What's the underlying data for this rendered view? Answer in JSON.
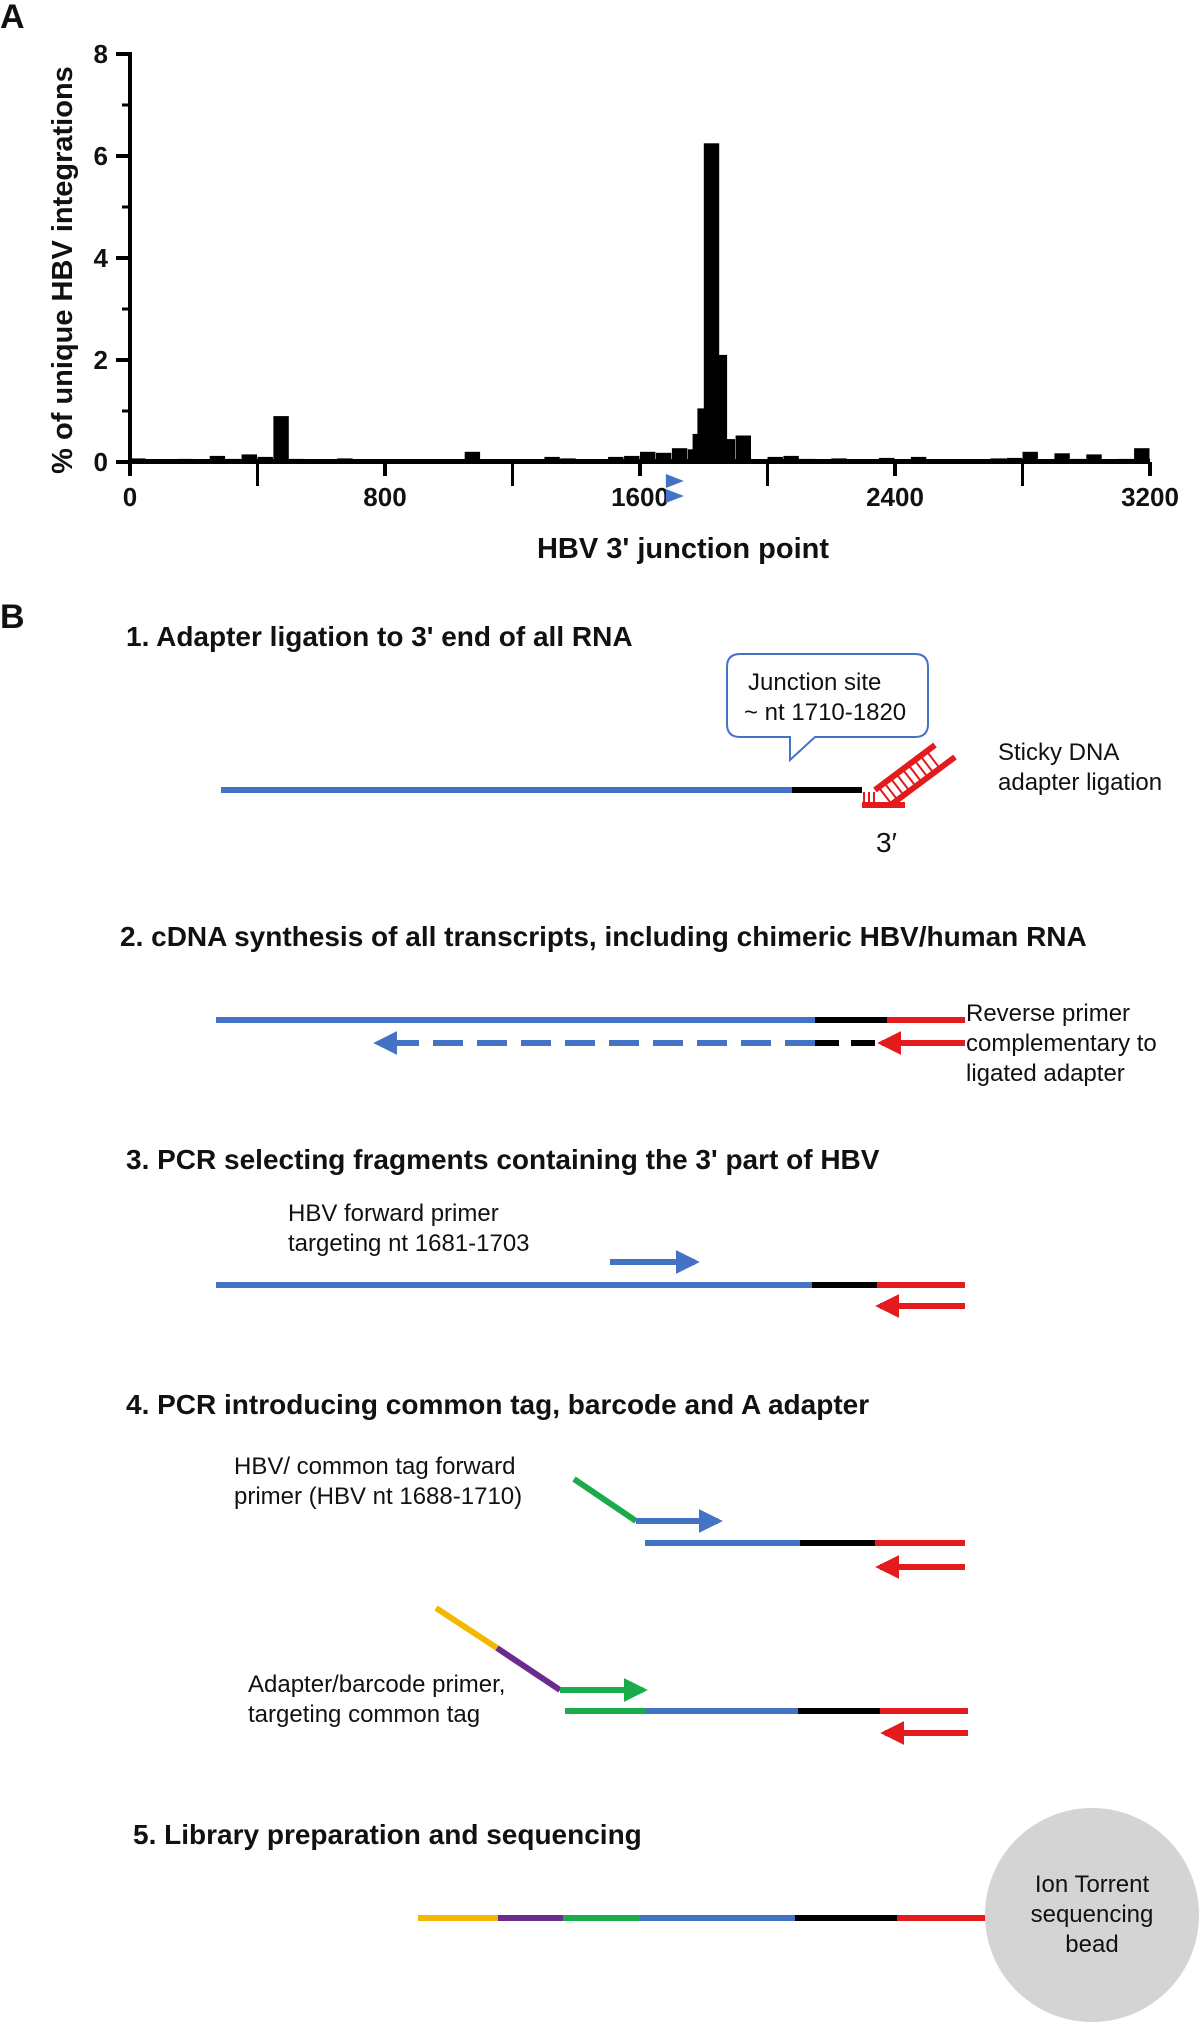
{
  "panel_a": {
    "label": "A",
    "chart_data": {
      "type": "bar",
      "title": "",
      "xlabel": "HBV 3' junction point",
      "ylabel": "% of unique HBV integrations",
      "xlim": [
        0,
        3200
      ],
      "ylim": [
        0,
        8
      ],
      "xticks": [
        0,
        800,
        1600,
        2400,
        3200
      ],
      "yticks": [
        0,
        2,
        4,
        6,
        8
      ],
      "grid": false,
      "bin_width": 50,
      "bins": [
        {
          "x": 25,
          "y": 0.07
        },
        {
          "x": 75,
          "y": 0.05
        },
        {
          "x": 175,
          "y": 0.06
        },
        {
          "x": 225,
          "y": 0.04
        },
        {
          "x": 275,
          "y": 0.12
        },
        {
          "x": 325,
          "y": 0.06
        },
        {
          "x": 375,
          "y": 0.15
        },
        {
          "x": 425,
          "y": 0.1
        },
        {
          "x": 475,
          "y": 0.9
        },
        {
          "x": 525,
          "y": 0.06
        },
        {
          "x": 675,
          "y": 0.07
        },
        {
          "x": 725,
          "y": 0.05
        },
        {
          "x": 1075,
          "y": 0.2
        },
        {
          "x": 1275,
          "y": 0.04
        },
        {
          "x": 1325,
          "y": 0.1
        },
        {
          "x": 1375,
          "y": 0.07
        },
        {
          "x": 1525,
          "y": 0.1
        },
        {
          "x": 1575,
          "y": 0.12
        },
        {
          "x": 1625,
          "y": 0.2
        },
        {
          "x": 1675,
          "y": 0.18
        },
        {
          "x": 1725,
          "y": 0.27
        },
        {
          "x": 1775,
          "y": 0.25
        },
        {
          "x": 1790,
          "y": 0.55
        },
        {
          "x": 1805,
          "y": 1.05
        },
        {
          "x": 1825,
          "y": 6.25
        },
        {
          "x": 1850,
          "y": 2.1
        },
        {
          "x": 1875,
          "y": 0.45
        },
        {
          "x": 1925,
          "y": 0.52
        },
        {
          "x": 1975,
          "y": 0.05
        },
        {
          "x": 2025,
          "y": 0.1
        },
        {
          "x": 2075,
          "y": 0.12
        },
        {
          "x": 2125,
          "y": 0.06
        },
        {
          "x": 2225,
          "y": 0.07
        },
        {
          "x": 2275,
          "y": 0.04
        },
        {
          "x": 2375,
          "y": 0.08
        },
        {
          "x": 2475,
          "y": 0.1
        },
        {
          "x": 2525,
          "y": 0.04
        },
        {
          "x": 2675,
          "y": 0.05
        },
        {
          "x": 2725,
          "y": 0.07
        },
        {
          "x": 2775,
          "y": 0.08
        },
        {
          "x": 2825,
          "y": 0.2
        },
        {
          "x": 2925,
          "y": 0.17
        },
        {
          "x": 2975,
          "y": 0.06
        },
        {
          "x": 3025,
          "y": 0.15
        },
        {
          "x": 3125,
          "y": 0.06
        },
        {
          "x": 3175,
          "y": 0.27
        }
      ],
      "primer_marker_x": 1700
    }
  },
  "panel_b": {
    "label": "B",
    "steps": [
      {
        "title": "1. Adapter ligation to 3' end of all RNA",
        "callout_lines": [
          "Junction site",
          "~ nt 1710-1820"
        ],
        "side_lines": [
          "Sticky DNA",
          "adapter ligation"
        ],
        "end_label": "3′"
      },
      {
        "title": "2. cDNA synthesis of all transcripts, including chimeric HBV/human RNA",
        "side_lines": [
          "Reverse primer",
          "complementary to",
          "ligated adapter"
        ]
      },
      {
        "title": "3. PCR selecting fragments containing the 3' part of HBV",
        "primer_lines": [
          "HBV forward primer",
          "targeting nt 1681-1703"
        ]
      },
      {
        "title": "4. PCR introducing common tag, barcode and A adapter",
        "primer_lines": [
          "HBV/ common tag forward",
          "primer (HBV nt 1688-1710)"
        ],
        "primer2_lines": [
          "Adapter/barcode primer,",
          "targeting common tag"
        ]
      },
      {
        "title": "5. Library preparation and sequencing",
        "bead_lines": [
          "Ion Torrent",
          "sequencing",
          "bead"
        ]
      }
    ]
  },
  "colors": {
    "hbv": "#4472c4",
    "human": "#000000",
    "adapter": "#e41a1c",
    "common_tag": "#1aab4b",
    "barcode": "#6a2c91",
    "a_adapter": "#f5b800",
    "bead": "#d4d4d4"
  }
}
